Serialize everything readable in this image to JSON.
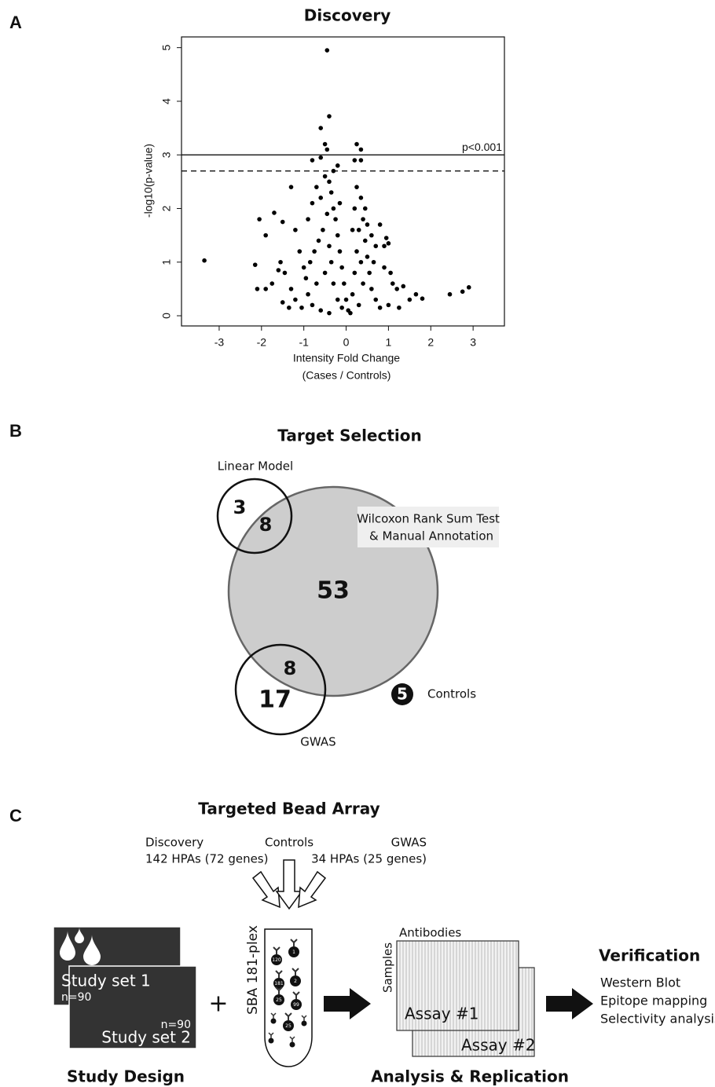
{
  "panel_labels": [
    "A",
    "B",
    "C"
  ],
  "chart_data": {
    "type": "scatter",
    "title": "Discovery",
    "xlabel": [
      "Intensity Fold Change",
      "(Cases / Controls)"
    ],
    "ylabel": "-log10(p-value)",
    "color": "#000000",
    "xlim": [
      -3.89,
      3.74
    ],
    "ylim": [
      -0.19,
      5.2
    ],
    "xticks": [
      -3,
      -2,
      -1,
      0,
      1,
      2,
      3
    ],
    "yticks": [
      0,
      1,
      2,
      3,
      4,
      5
    ],
    "hlines": [
      {
        "value": 3,
        "style": "solid",
        "label": "p<0.001"
      },
      {
        "value": 2.7,
        "style": "dashed"
      }
    ],
    "x": [
      -0.45,
      -0.4,
      -0.6,
      -0.5,
      -0.45,
      0.25,
      0.35,
      -0.8,
      -0.6,
      0.2,
      0.35,
      -0.2,
      -0.3,
      -3.35,
      -2.15,
      -2.05,
      -1.9,
      -1.7,
      -1.3,
      -1.5,
      -1.2,
      -1.1,
      -1.55,
      -1.75,
      -1.6,
      -1.45,
      -1.3,
      -1.5,
      -1.35,
      -1.9,
      -2.1,
      -1.2,
      -1.0,
      -0.9,
      -0.8,
      -0.7,
      -0.6,
      -0.5,
      -0.4,
      -0.35,
      -0.3,
      -0.25,
      -0.2,
      -0.15,
      -0.1,
      -0.05,
      0.0,
      0.05,
      -0.45,
      -0.55,
      -0.65,
      -0.75,
      -0.85,
      -0.95,
      -0.9,
      -0.8,
      -0.6,
      -0.4,
      -0.3,
      -0.35,
      -0.4,
      -0.5,
      -0.7,
      -0.2,
      -0.1,
      0.1,
      0.15,
      0.2,
      0.25,
      0.3,
      0.2,
      0.25,
      0.35,
      0.4,
      0.45,
      0.5,
      0.55,
      0.6,
      0.7,
      0.8,
      0.3,
      0.4,
      0.35,
      0.45,
      0.5,
      0.6,
      0.7,
      0.8,
      0.9,
      1.0,
      0.95,
      1.05,
      1.1,
      1.2,
      1.35,
      1.5,
      1.65,
      1.8,
      1.0,
      0.9,
      2.45,
      2.75,
      2.9,
      1.25,
      0.65,
      -1.05,
      0.15,
      -0.15
    ],
    "values": [
      4.95,
      3.72,
      3.5,
      3.2,
      3.1,
      3.2,
      3.1,
      2.9,
      2.95,
      2.9,
      2.9,
      2.8,
      2.7,
      1.03,
      0.95,
      1.8,
      1.5,
      1.92,
      2.4,
      1.75,
      1.6,
      1.2,
      1.0,
      0.6,
      0.85,
      0.8,
      0.5,
      0.25,
      0.15,
      0.5,
      0.5,
      0.3,
      0.9,
      1.8,
      2.1,
      2.4,
      2.2,
      2.6,
      2.5,
      2.3,
      2.0,
      1.8,
      1.5,
      1.2,
      0.9,
      0.6,
      0.3,
      0.1,
      1.9,
      1.6,
      1.4,
      1.2,
      1.0,
      0.7,
      0.4,
      0.2,
      0.1,
      0.05,
      0.6,
      1.0,
      1.3,
      0.8,
      0.6,
      0.3,
      0.15,
      0.05,
      0.4,
      0.8,
      1.2,
      1.6,
      2.0,
      2.4,
      2.2,
      1.8,
      1.4,
      1.1,
      0.8,
      0.5,
      0.3,
      0.15,
      0.2,
      0.6,
      1.0,
      2.0,
      1.7,
      1.5,
      1.3,
      1.7,
      1.3,
      1.35,
      1.45,
      0.8,
      0.6,
      0.5,
      0.55,
      0.3,
      0.4,
      0.32,
      0.2,
      0.9,
      0.4,
      0.45,
      0.53,
      0.15,
      1.0,
      0.15,
      1.6,
      2.1
    ]
  },
  "venn": {
    "title": "Target Selection",
    "sets": [
      {
        "label": "Linear Model"
      },
      {
        "label": [
          "Wilcoxon Rank Sum Test",
          "& Manual Annotation"
        ]
      },
      {
        "label": "GWAS"
      }
    ],
    "regions": [
      3,
      8,
      53,
      8,
      17
    ],
    "controls": {
      "count": 5,
      "label": "Controls"
    }
  },
  "bead_array": {
    "title": "Targeted Bead Array",
    "sources": [
      {
        "name": "Discovery",
        "detail": "142 HPAs (72 genes)"
      },
      {
        "name": "Controls"
      },
      {
        "name": "GWAS",
        "detail": "34 HPAs (25 genes)"
      }
    ],
    "study_sets": [
      {
        "name": "Study set 1",
        "n": "n=90"
      },
      {
        "name": "Study set 2",
        "n": "n=90"
      }
    ],
    "plus": "+",
    "tube": {
      "label": "SBA 181-plex",
      "bead_labels": [
        "120",
        "1",
        "181",
        "2",
        "25",
        "99",
        "25"
      ]
    },
    "assays": {
      "columns": "Antibodies",
      "rows": "Samples",
      "names": [
        "Assay #1",
        "Assay #2"
      ]
    },
    "verification": {
      "title": "Verification",
      "items": [
        "Western Blot",
        "Epitope mapping",
        "Selectivity analysis"
      ]
    },
    "footer": [
      "Study Design",
      "Analysis & Replication"
    ]
  }
}
